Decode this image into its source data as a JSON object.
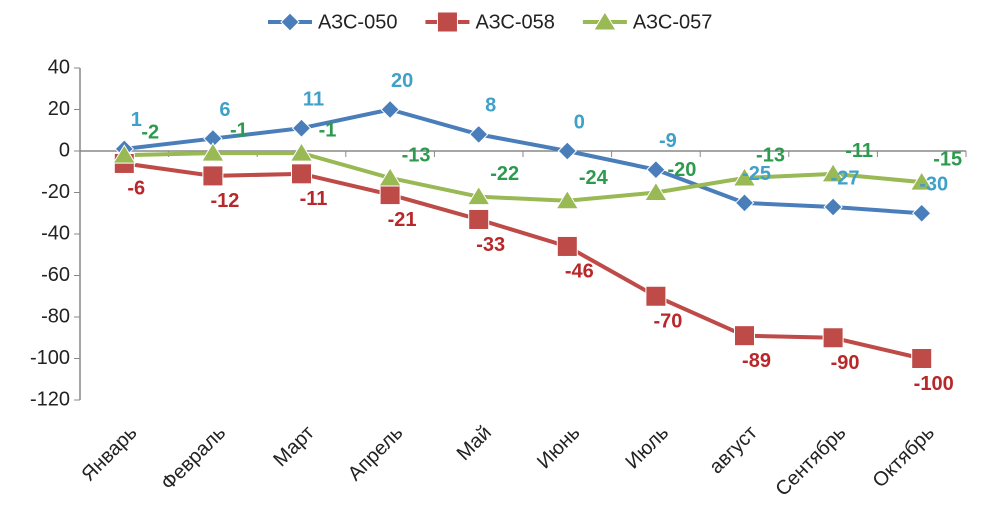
{
  "chart_data": {
    "type": "line",
    "categories": [
      "Январь",
      "Февраль",
      "Март",
      "Апрель",
      "Май",
      "Июнь",
      "Июль",
      "август",
      "Сентябрь",
      "Октябрь"
    ],
    "series": [
      {
        "name": "АЗС-050",
        "color": "#4a7ebb",
        "label_color": "#3fa0c8",
        "marker": "diamond",
        "values": [
          1,
          6,
          11,
          20,
          8,
          0,
          -9,
          -25,
          -27,
          -30
        ]
      },
      {
        "name": "АЗС-058",
        "color": "#be4b48",
        "label_color": "#b8282a",
        "marker": "square",
        "values": [
          -6,
          -12,
          -11,
          -21,
          -33,
          -46,
          -70,
          -89,
          -90,
          -100
        ]
      },
      {
        "name": "АЗС-057",
        "color": "#98b954",
        "label_color": "#2e9a4e",
        "marker": "triangle",
        "values": [
          -2,
          -1,
          -1,
          -13,
          -22,
          -24,
          -20,
          -13,
          -11,
          -15
        ]
      }
    ],
    "ylim": [
      -120,
      40
    ],
    "yticks": [
      -120,
      -100,
      -80,
      -60,
      -40,
      -20,
      0,
      20,
      40
    ],
    "legend": "top"
  }
}
